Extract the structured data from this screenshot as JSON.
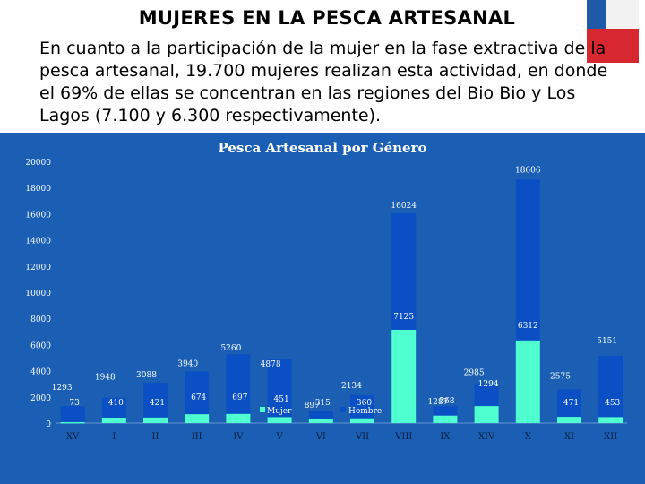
{
  "slide": {
    "title": "MUJERES EN LA PESCA ARTESANAL",
    "paragraph": "En cuanto a la participación de la mujer en la fase extractiva de la pesca artesanal, 19.700 mujeres realizan esta actividad, en donde el 69% de ellas se concentran en las regiones del Bio Bio y Los Lagos (7.100 y 6.300 respectivamente)."
  },
  "colors": {
    "panel": "#1a5fb4",
    "mujer": "#4fffd0",
    "hombre": "#0a4fc4",
    "text": "#ffffff"
  },
  "chart_data": {
    "type": "bar",
    "title": "Pesca Artesanal por Género",
    "categories": [
      "XV",
      "I",
      "II",
      "III",
      "IV",
      "V",
      "VI",
      "VII",
      "VIII",
      "IX",
      "XIV",
      "X",
      "XI",
      "XII"
    ],
    "series": [
      {
        "name": "Mujer",
        "values": [
          73,
          410,
          421,
          674,
          697,
          451,
          315,
          360,
          7125,
          568,
          1294,
          6312,
          471,
          453
        ]
      },
      {
        "name": "Hombre",
        "values": [
          1293,
          1948,
          3088,
          3940,
          5260,
          4878,
          897,
          2134,
          16024,
          1287,
          2985,
          18606,
          2575,
          5151
        ]
      }
    ],
    "ylim": [
      0,
      20000
    ],
    "yticks": [
      0,
      2000,
      4000,
      6000,
      8000,
      10000,
      12000,
      14000,
      16000,
      18000,
      20000
    ],
    "mujer_labels": [
      "73",
      "410",
      "421",
      "674",
      "697",
      "451",
      "315",
      "360",
      "7125",
      "568",
      "1294",
      "6312",
      "471",
      "453"
    ],
    "hombre_labels": [
      "1293",
      "1948",
      "3088",
      "3940",
      "5260",
      "4878",
      "897",
      "2134",
      "16024",
      "1287",
      "2985",
      "18606",
      "2575",
      "5151"
    ],
    "legend_position": "center",
    "xlabel": "",
    "ylabel": ""
  }
}
